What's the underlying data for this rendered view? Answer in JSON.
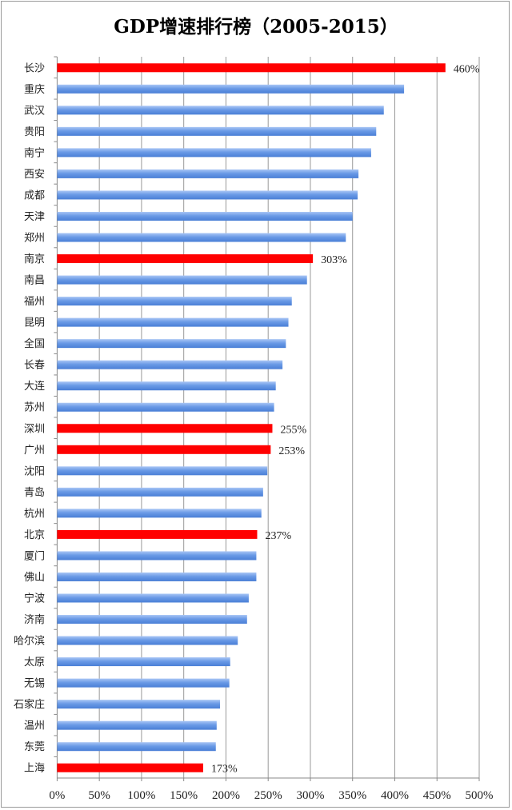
{
  "chart_data": {
    "type": "bar",
    "orientation": "horizontal",
    "title": "GDP增速排行榜（2005-2015）",
    "xlabel": "",
    "ylabel": "",
    "xlim": [
      0,
      500
    ],
    "x_ticks": [
      "0%",
      "50%",
      "100%",
      "150%",
      "200%",
      "250%",
      "300%",
      "350%",
      "400%",
      "450%",
      "500%"
    ],
    "grid": "vertical",
    "categories": [
      "长沙",
      "重庆",
      "武汉",
      "贵阳",
      "南宁",
      "西安",
      "成都",
      "天津",
      "郑州",
      "南京",
      "南昌",
      "福州",
      "昆明",
      "全国",
      "长春",
      "大连",
      "苏州",
      "深圳",
      "广州",
      "沈阳",
      "青岛",
      "杭州",
      "北京",
      "厦门",
      "佛山",
      "宁波",
      "济南",
      "哈尔滨",
      "太原",
      "无锡",
      "石家庄",
      "温州",
      "东莞",
      "上海"
    ],
    "values": [
      460,
      411,
      387,
      378,
      372,
      357,
      356,
      350,
      342,
      303,
      296,
      278,
      274,
      271,
      267,
      259,
      257,
      255,
      253,
      249,
      244,
      242,
      237,
      236,
      236,
      227,
      225,
      214,
      205,
      204,
      193,
      189,
      188,
      173
    ],
    "highlighted": [
      "长沙",
      "南京",
      "深圳",
      "广州",
      "北京",
      "上海"
    ],
    "data_labels": {
      "长沙": "460%",
      "南京": "303%",
      "深圳": "255%",
      "广州": "253%",
      "北京": "237%",
      "上海": "173%"
    },
    "colors": {
      "default": "#5b8fe0",
      "highlight": "#ff0000",
      "grid": "#999999"
    }
  }
}
